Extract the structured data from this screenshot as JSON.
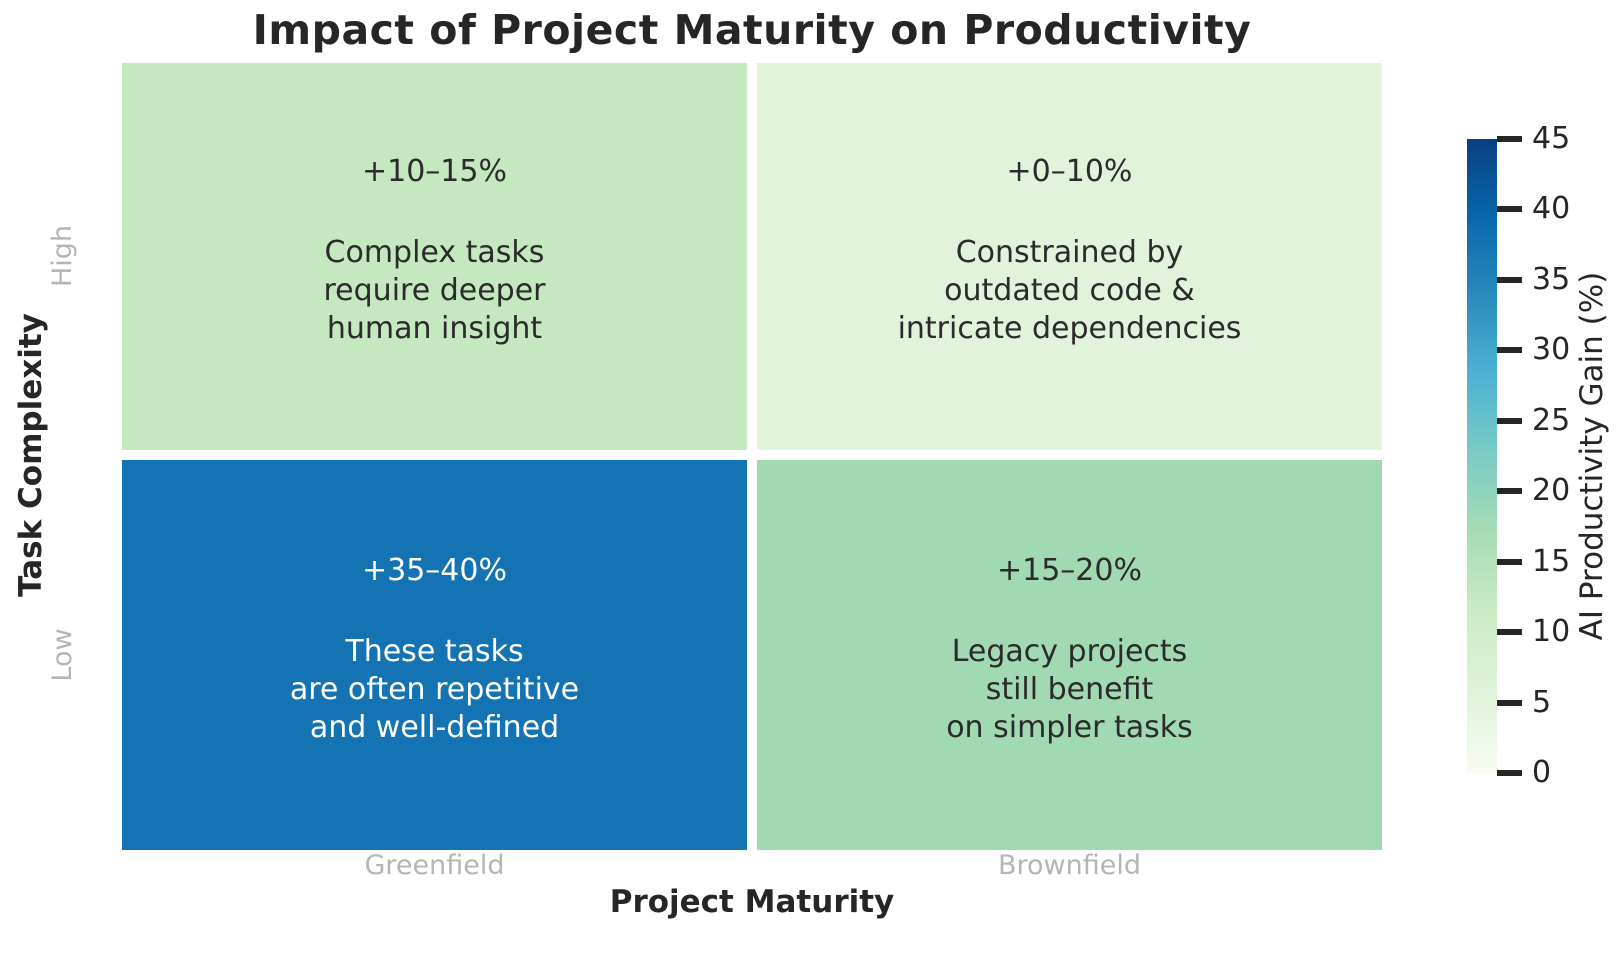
{
  "title": "Impact of Project Maturity on Productivity",
  "axes": {
    "x_label": "Project Maturity",
    "y_label": "Task Complexity",
    "x_tick_labels": {
      "left": "Greenfield",
      "right": "Brownfield"
    },
    "y_tick_labels": {
      "top": "High",
      "bottom": "Low"
    }
  },
  "cells": [
    {
      "row": "High",
      "col": "Greenfield",
      "value_label": "+10–15%",
      "description": "Complex tasks\nrequire deeper\nhuman insight",
      "value_mid": 12.5,
      "bg": "#c5e8c0",
      "text_color": "#2b2b2b"
    },
    {
      "row": "High",
      "col": "Brownfield",
      "value_label": "+0–10%",
      "description": "Constrained by\noutdated code &\nintricate dependencies",
      "value_mid": 5,
      "bg": "#e2f3dc",
      "text_color": "#2b2b2b"
    },
    {
      "row": "Low",
      "col": "Greenfield",
      "value_label": "+35–40%",
      "description": "These tasks\nare often repetitive\nand well-defined",
      "value_mid": 37.5,
      "bg": "#1473b2",
      "text_color": "#ffffff"
    },
    {
      "row": "Low",
      "col": "Brownfield",
      "value_label": "+15–20%",
      "description": "Legacy projects\nstill benefit\non simpler tasks",
      "value_mid": 17.5,
      "bg": "#a1d9b2",
      "text_color": "#2b2b2b"
    }
  ],
  "colorbar": {
    "label": "AI Productivity Gain (%)",
    "min": 0,
    "max": 45,
    "tick_values": [
      0,
      5,
      10,
      15,
      20,
      25,
      30,
      35,
      40,
      45
    ],
    "gradient_stops": [
      "#f7fcf0 0%",
      "#e0f3db 12.5%",
      "#ccebc5 25%",
      "#a8ddb5 37.5%",
      "#7bccc4 50%",
      "#4eb3d3 62.5%",
      "#2b8cbe 75%",
      "#0868ac 87.5%",
      "#084081 100%"
    ],
    "tick_color": "#262626"
  },
  "colors": {
    "title_text": "#262626",
    "axis_label_text": "#262626",
    "tick_label_text": "#b5b5b5",
    "background": "#ffffff"
  },
  "chart_data": {
    "type": "heatmap",
    "title": "Impact of Project Maturity on Productivity",
    "xlabel": "Project Maturity",
    "ylabel": "Task Complexity",
    "x_categories": [
      "Greenfield",
      "Brownfield"
    ],
    "y_categories": [
      "High",
      "Low"
    ],
    "values": [
      [
        12.5,
        5
      ],
      [
        37.5,
        17.5
      ]
    ],
    "value_ranges": [
      [
        "+10–15%",
        "+0–10%"
      ],
      [
        "+35–40%",
        "+15–20%"
      ]
    ],
    "annotations": [
      [
        "Complex tasks require deeper human insight",
        "Constrained by outdated code & intricate dependencies"
      ],
      [
        "These tasks are often repetitive and well-defined",
        "Legacy projects still benefit on simpler tasks"
      ]
    ],
    "colormap": "GnBu",
    "vmin": 0,
    "vmax": 45,
    "colorbar_label": "AI Productivity Gain (%)",
    "colorbar_ticks": [
      0,
      5,
      10,
      15,
      20,
      25,
      30,
      35,
      40,
      45
    ],
    "grid": false,
    "legend_position": "right-colorbar"
  }
}
